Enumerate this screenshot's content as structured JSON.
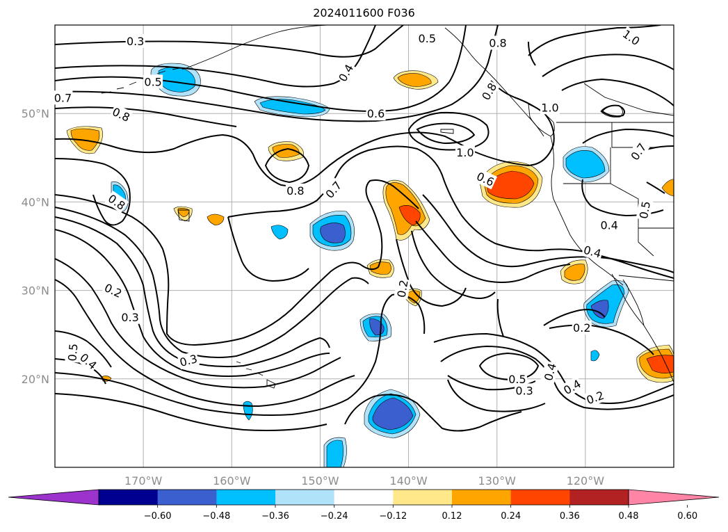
{
  "title": "2024011600 F036",
  "axes": {
    "lat_labels": [
      {
        "value": 50,
        "text": "50°N"
      },
      {
        "value": 40,
        "text": "40°N"
      },
      {
        "value": 30,
        "text": "30°N"
      },
      {
        "value": 20,
        "text": "20°N"
      }
    ],
    "lon_labels": [
      {
        "value": -170,
        "text": "170°W"
      },
      {
        "value": -160,
        "text": "160°W"
      },
      {
        "value": -150,
        "text": "150°W"
      },
      {
        "value": -140,
        "text": "140°W"
      },
      {
        "value": -130,
        "text": "130°W"
      },
      {
        "value": -120,
        "text": "120°W"
      }
    ],
    "lon_range": [
      -180,
      -110
    ],
    "lat_range": [
      10,
      60
    ],
    "grid": true
  },
  "colorbar": {
    "colors": [
      "#9b33cc",
      "#000090",
      "#3b5fcf",
      "#00bfff",
      "#b0e2fa",
      "#ffffff",
      "#ffe88a",
      "#ffa500",
      "#ff4500",
      "#b22222",
      "#ff85a7"
    ],
    "tick_labels": [
      "−0.60",
      "−0.48",
      "−0.36",
      "−0.24",
      "−0.12",
      "0.12",
      "0.24",
      "0.36",
      "0.48",
      "0.60"
    ],
    "extend": "both"
  },
  "contour_labels": [
    {
      "text": "0.3",
      "lon": -170.9,
      "lat": 58.2,
      "rot": 0
    },
    {
      "text": "0.5",
      "lon": -168.9,
      "lat": 53.6,
      "rot": 0
    },
    {
      "text": "0.7",
      "lon": -179.1,
      "lat": 51.8,
      "rot": 0
    },
    {
      "text": "0.8",
      "lon": -172.5,
      "lat": 49.9,
      "rot": 25
    },
    {
      "text": "0.4",
      "lon": -147.1,
      "lat": 54.6,
      "rot": -60
    },
    {
      "text": "0.5",
      "lon": -137.9,
      "lat": 58.5,
      "rot": 0
    },
    {
      "text": "0.8",
      "lon": -129.9,
      "lat": 58.0,
      "rot": 0
    },
    {
      "text": "1.0",
      "lon": -114.8,
      "lat": 58.6,
      "rot": 35
    },
    {
      "text": "0.8",
      "lon": -130.9,
      "lat": 52.5,
      "rot": -60
    },
    {
      "text": "1.0",
      "lon": -124.0,
      "lat": 50.7,
      "rot": 0
    },
    {
      "text": "0.6",
      "lon": -143.7,
      "lat": 50.0,
      "rot": 0
    },
    {
      "text": "1.0",
      "lon": -133.6,
      "lat": 45.6,
      "rot": 0
    },
    {
      "text": "0.6",
      "lon": -131.3,
      "lat": 42.6,
      "rot": 25
    },
    {
      "text": "0.7",
      "lon": -114.0,
      "lat": 45.7,
      "rot": -55
    },
    {
      "text": "0.8",
      "lon": -152.8,
      "lat": 41.3,
      "rot": 0
    },
    {
      "text": "0.7",
      "lon": -148.5,
      "lat": 41.4,
      "rot": -50
    },
    {
      "text": "0.8",
      "lon": -173.0,
      "lat": 40.0,
      "rot": 35
    },
    {
      "text": "0.5",
      "lon": -113.3,
      "lat": 39.1,
      "rot": -80
    },
    {
      "text": "0.4",
      "lon": -117.3,
      "lat": 37.4,
      "rot": 0
    },
    {
      "text": "0.4",
      "lon": -119.2,
      "lat": 34.4,
      "rot": 15
    },
    {
      "text": "0.2",
      "lon": -173.4,
      "lat": 30.0,
      "rot": 25
    },
    {
      "text": "0.3",
      "lon": -171.5,
      "lat": 27.0,
      "rot": 0
    },
    {
      "text": "0.2",
      "lon": -140.7,
      "lat": 30.2,
      "rot": -80
    },
    {
      "text": "0.2",
      "lon": -120.4,
      "lat": 25.8,
      "rot": 0
    },
    {
      "text": "0.5",
      "lon": -178.0,
      "lat": 23.0,
      "rot": -85
    },
    {
      "text": "0.4",
      "lon": -176.2,
      "lat": 22.0,
      "rot": 40
    },
    {
      "text": "0.3",
      "lon": -164.9,
      "lat": 22.1,
      "rot": -15
    },
    {
      "text": "0.5",
      "lon": -127.7,
      "lat": 20.0,
      "rot": 0
    },
    {
      "text": "0.3",
      "lon": -126.9,
      "lat": 18.7,
      "rot": 0
    },
    {
      "text": "0.4",
      "lon": -124.0,
      "lat": 20.8,
      "rot": -75
    },
    {
      "text": "0.4",
      "lon": -121.5,
      "lat": 19.1,
      "rot": -30
    },
    {
      "text": "0.2",
      "lon": -118.9,
      "lat": 17.9,
      "rot": -20
    }
  ]
}
